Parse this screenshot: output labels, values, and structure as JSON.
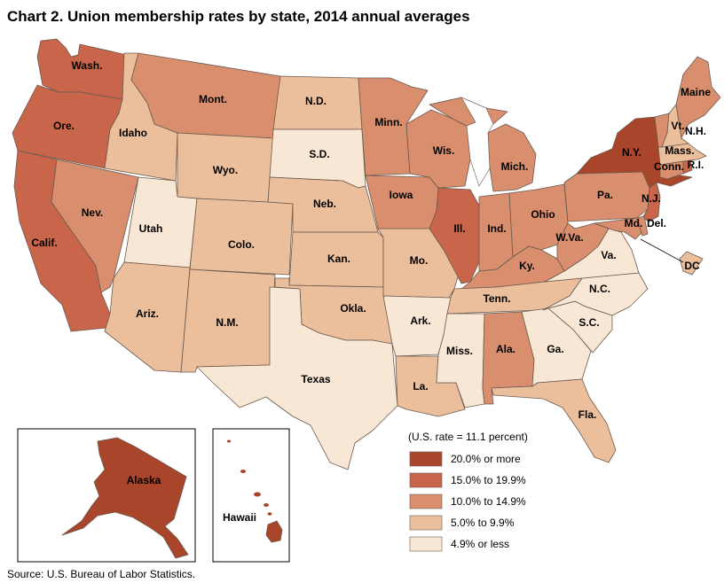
{
  "title": "Chart 2. Union membership rates by state, 2014 annual averages",
  "source": "Source: U.S. Bureau of Labor Statistics.",
  "legend": {
    "note": "(U.S. rate = 11.1 percent)",
    "items": [
      {
        "label": "20.0% or more",
        "color": "#a8452a"
      },
      {
        "label": "15.0% to 19.9%",
        "color": "#c9654a"
      },
      {
        "label": "10.0% to 14.9%",
        "color": "#d98e6e"
      },
      {
        "label": "5.0% to 9.9%",
        "color": "#ebbe9c"
      },
      {
        "label": "4.9% or less",
        "color": "#f8e7d4"
      }
    ]
  },
  "states": [
    {
      "key": "wa",
      "label": "Wash.",
      "category": 1
    },
    {
      "key": "or",
      "label": "Ore.",
      "category": 1
    },
    {
      "key": "ca",
      "label": "Calif.",
      "category": 1
    },
    {
      "key": "id",
      "label": "Idaho",
      "category": 3
    },
    {
      "key": "nv",
      "label": "Nev.",
      "category": 2
    },
    {
      "key": "ut",
      "label": "Utah",
      "category": 4
    },
    {
      "key": "az",
      "label": "Ariz.",
      "category": 3
    },
    {
      "key": "mt",
      "label": "Mont.",
      "category": 2
    },
    {
      "key": "wy",
      "label": "Wyo.",
      "category": 3
    },
    {
      "key": "co",
      "label": "Colo.",
      "category": 3
    },
    {
      "key": "nm",
      "label": "N.M.",
      "category": 3
    },
    {
      "key": "nd",
      "label": "N.D.",
      "category": 3
    },
    {
      "key": "sd",
      "label": "S.D.",
      "category": 4
    },
    {
      "key": "ne",
      "label": "Neb.",
      "category": 3
    },
    {
      "key": "ks",
      "label": "Kan.",
      "category": 3
    },
    {
      "key": "ok",
      "label": "Okla.",
      "category": 3
    },
    {
      "key": "tx",
      "label": "Texas",
      "category": 4
    },
    {
      "key": "mn",
      "label": "Minn.",
      "category": 2
    },
    {
      "key": "ia",
      "label": "Iowa",
      "category": 2
    },
    {
      "key": "mo",
      "label": "Mo.",
      "category": 3
    },
    {
      "key": "ar",
      "label": "Ark.",
      "category": 4
    },
    {
      "key": "la",
      "label": "La.",
      "category": 3
    },
    {
      "key": "wi",
      "label": "Wis.",
      "category": 2
    },
    {
      "key": "il",
      "label": "Ill.",
      "category": 1
    },
    {
      "key": "mi",
      "label": "Mich.",
      "category": 2
    },
    {
      "key": "in",
      "label": "Ind.",
      "category": 2
    },
    {
      "key": "oh",
      "label": "Ohio",
      "category": 2
    },
    {
      "key": "ky",
      "label": "Ky.",
      "category": 2
    },
    {
      "key": "tn",
      "label": "Tenn.",
      "category": 3
    },
    {
      "key": "ms",
      "label": "Miss.",
      "category": 4
    },
    {
      "key": "al",
      "label": "Ala.",
      "category": 2
    },
    {
      "key": "ga",
      "label": "Ga.",
      "category": 4
    },
    {
      "key": "fl",
      "label": "Fla.",
      "category": 3
    },
    {
      "key": "sc",
      "label": "S.C.",
      "category": 4
    },
    {
      "key": "nc",
      "label": "N.C.",
      "category": 4
    },
    {
      "key": "va",
      "label": "Va.",
      "category": 4
    },
    {
      "key": "wv",
      "label": "W.Va.",
      "category": 2
    },
    {
      "key": "pa",
      "label": "Pa.",
      "category": 2
    },
    {
      "key": "ny",
      "label": "N.Y.",
      "category": 0
    },
    {
      "key": "nj",
      "label": "N.J.",
      "category": 1
    },
    {
      "key": "md",
      "label": "Md.",
      "category": 2
    },
    {
      "key": "de",
      "label": "Del.",
      "category": 2
    },
    {
      "key": "dc",
      "label": "DC",
      "category": 3
    },
    {
      "key": "ct",
      "label": "Conn.",
      "category": 2
    },
    {
      "key": "ri",
      "label": "R.I.",
      "category": 1
    },
    {
      "key": "ma",
      "label": "Mass.",
      "category": 3
    },
    {
      "key": "vt",
      "label": "Vt.",
      "category": 2
    },
    {
      "key": "nh",
      "label": "N.H.",
      "category": 3
    },
    {
      "key": "me",
      "label": "Maine",
      "category": 2
    },
    {
      "key": "ak",
      "label": "Alaska",
      "category": 0
    },
    {
      "key": "hi",
      "label": "Hawaii",
      "category": 0
    }
  ]
}
